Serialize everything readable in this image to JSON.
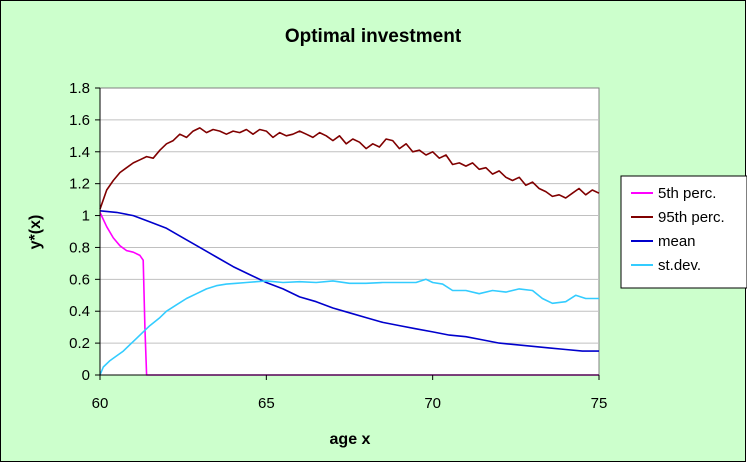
{
  "colors": {
    "chart_area_bg": "#ccffcc",
    "plot_bg": "#ffffff",
    "border": "#000000",
    "gridline": "#c0c0c0"
  },
  "chart_data": {
    "type": "line",
    "title": "Optimal investment",
    "xlabel": "age x",
    "ylabel": "y*(x)",
    "xlim": [
      60,
      75
    ],
    "ylim": [
      0,
      1.8
    ],
    "x_ticks": [
      "60",
      "65",
      "70",
      "75"
    ],
    "y_ticks": [
      "0",
      "0.2",
      "0.4",
      "0.6",
      "0.8",
      "1",
      "1.2",
      "1.4",
      "1.6",
      "1.8"
    ],
    "grid": "horizontal",
    "legend_position": "right",
    "series": [
      {
        "name": "5th perc.",
        "color": "#ff00ff",
        "points": [
          [
            60,
            1.02
          ],
          [
            60.2,
            0.93
          ],
          [
            60.4,
            0.86
          ],
          [
            60.6,
            0.81
          ],
          [
            60.8,
            0.78
          ],
          [
            61.0,
            0.77
          ],
          [
            61.2,
            0.75
          ],
          [
            61.3,
            0.72
          ],
          [
            61.35,
            0.3
          ],
          [
            61.4,
            0
          ],
          [
            62,
            0
          ],
          [
            65,
            0
          ],
          [
            70,
            0
          ],
          [
            75,
            0
          ]
        ]
      },
      {
        "name": "95th perc.",
        "color": "#800000",
        "points": [
          [
            60,
            1.04
          ],
          [
            60.2,
            1.16
          ],
          [
            60.4,
            1.22
          ],
          [
            60.6,
            1.27
          ],
          [
            60.8,
            1.3
          ],
          [
            61.0,
            1.33
          ],
          [
            61.2,
            1.35
          ],
          [
            61.4,
            1.37
          ],
          [
            61.6,
            1.36
          ],
          [
            61.8,
            1.41
          ],
          [
            62.0,
            1.45
          ],
          [
            62.2,
            1.47
          ],
          [
            62.4,
            1.51
          ],
          [
            62.6,
            1.49
          ],
          [
            62.8,
            1.53
          ],
          [
            63.0,
            1.55
          ],
          [
            63.2,
            1.52
          ],
          [
            63.4,
            1.54
          ],
          [
            63.6,
            1.53
          ],
          [
            63.8,
            1.51
          ],
          [
            64.0,
            1.53
          ],
          [
            64.2,
            1.52
          ],
          [
            64.4,
            1.54
          ],
          [
            64.6,
            1.51
          ],
          [
            64.8,
            1.54
          ],
          [
            65.0,
            1.53
          ],
          [
            65.2,
            1.49
          ],
          [
            65.4,
            1.52
          ],
          [
            65.6,
            1.5
          ],
          [
            65.8,
            1.51
          ],
          [
            66.0,
            1.53
          ],
          [
            66.2,
            1.51
          ],
          [
            66.4,
            1.49
          ],
          [
            66.6,
            1.52
          ],
          [
            66.8,
            1.5
          ],
          [
            67.0,
            1.47
          ],
          [
            67.2,
            1.5
          ],
          [
            67.4,
            1.45
          ],
          [
            67.6,
            1.48
          ],
          [
            67.8,
            1.46
          ],
          [
            68.0,
            1.42
          ],
          [
            68.2,
            1.45
          ],
          [
            68.4,
            1.43
          ],
          [
            68.6,
            1.48
          ],
          [
            68.8,
            1.47
          ],
          [
            69.0,
            1.42
          ],
          [
            69.2,
            1.45
          ],
          [
            69.4,
            1.4
          ],
          [
            69.6,
            1.41
          ],
          [
            69.8,
            1.38
          ],
          [
            70.0,
            1.4
          ],
          [
            70.2,
            1.36
          ],
          [
            70.4,
            1.38
          ],
          [
            70.6,
            1.32
          ],
          [
            70.8,
            1.33
          ],
          [
            71.0,
            1.31
          ],
          [
            71.2,
            1.33
          ],
          [
            71.4,
            1.29
          ],
          [
            71.6,
            1.3
          ],
          [
            71.8,
            1.26
          ],
          [
            72.0,
            1.28
          ],
          [
            72.2,
            1.24
          ],
          [
            72.4,
            1.22
          ],
          [
            72.6,
            1.24
          ],
          [
            72.8,
            1.19
          ],
          [
            73.0,
            1.21
          ],
          [
            73.2,
            1.17
          ],
          [
            73.4,
            1.15
          ],
          [
            73.6,
            1.12
          ],
          [
            73.8,
            1.13
          ],
          [
            74.0,
            1.11
          ],
          [
            74.2,
            1.14
          ],
          [
            74.4,
            1.17
          ],
          [
            74.6,
            1.13
          ],
          [
            74.8,
            1.16
          ],
          [
            75.0,
            1.14
          ]
        ]
      },
      {
        "name": "mean",
        "color": "#0000cc",
        "points": [
          [
            60,
            1.03
          ],
          [
            60.5,
            1.02
          ],
          [
            61.0,
            1.0
          ],
          [
            61.5,
            0.96
          ],
          [
            62.0,
            0.92
          ],
          [
            62.5,
            0.86
          ],
          [
            63.0,
            0.8
          ],
          [
            63.5,
            0.74
          ],
          [
            64.0,
            0.68
          ],
          [
            64.5,
            0.63
          ],
          [
            65.0,
            0.58
          ],
          [
            65.5,
            0.54
          ],
          [
            66.0,
            0.49
          ],
          [
            66.5,
            0.46
          ],
          [
            67.0,
            0.42
          ],
          [
            67.5,
            0.39
          ],
          [
            68.0,
            0.36
          ],
          [
            68.5,
            0.33
          ],
          [
            69.0,
            0.31
          ],
          [
            69.5,
            0.29
          ],
          [
            70.0,
            0.27
          ],
          [
            70.5,
            0.25
          ],
          [
            71.0,
            0.24
          ],
          [
            71.5,
            0.22
          ],
          [
            72.0,
            0.2
          ],
          [
            72.5,
            0.19
          ],
          [
            73.0,
            0.18
          ],
          [
            73.5,
            0.17
          ],
          [
            74.0,
            0.16
          ],
          [
            74.5,
            0.15
          ],
          [
            75.0,
            0.15
          ]
        ]
      },
      {
        "name": "st.dev.",
        "color": "#33ccff",
        "points": [
          [
            60,
            0
          ],
          [
            60.1,
            0.05
          ],
          [
            60.3,
            0.09
          ],
          [
            60.5,
            0.12
          ],
          [
            60.7,
            0.15
          ],
          [
            60.9,
            0.19
          ],
          [
            61.1,
            0.23
          ],
          [
            61.3,
            0.27
          ],
          [
            61.5,
            0.31
          ],
          [
            61.8,
            0.36
          ],
          [
            62.0,
            0.4
          ],
          [
            62.3,
            0.44
          ],
          [
            62.6,
            0.48
          ],
          [
            62.9,
            0.51
          ],
          [
            63.2,
            0.54
          ],
          [
            63.5,
            0.56
          ],
          [
            63.8,
            0.57
          ],
          [
            64.1,
            0.575
          ],
          [
            64.4,
            0.58
          ],
          [
            64.7,
            0.585
          ],
          [
            65.0,
            0.59
          ],
          [
            65.5,
            0.58
          ],
          [
            66.0,
            0.585
          ],
          [
            66.5,
            0.58
          ],
          [
            67.0,
            0.59
          ],
          [
            67.5,
            0.575
          ],
          [
            68.0,
            0.575
          ],
          [
            68.5,
            0.58
          ],
          [
            69.0,
            0.58
          ],
          [
            69.5,
            0.58
          ],
          [
            69.8,
            0.6
          ],
          [
            70.0,
            0.58
          ],
          [
            70.3,
            0.57
          ],
          [
            70.6,
            0.53
          ],
          [
            71.0,
            0.53
          ],
          [
            71.4,
            0.51
          ],
          [
            71.8,
            0.53
          ],
          [
            72.2,
            0.52
          ],
          [
            72.6,
            0.54
          ],
          [
            73.0,
            0.53
          ],
          [
            73.3,
            0.48
          ],
          [
            73.6,
            0.45
          ],
          [
            74.0,
            0.46
          ],
          [
            74.3,
            0.5
          ],
          [
            74.6,
            0.48
          ],
          [
            75.0,
            0.48
          ]
        ]
      }
    ]
  }
}
